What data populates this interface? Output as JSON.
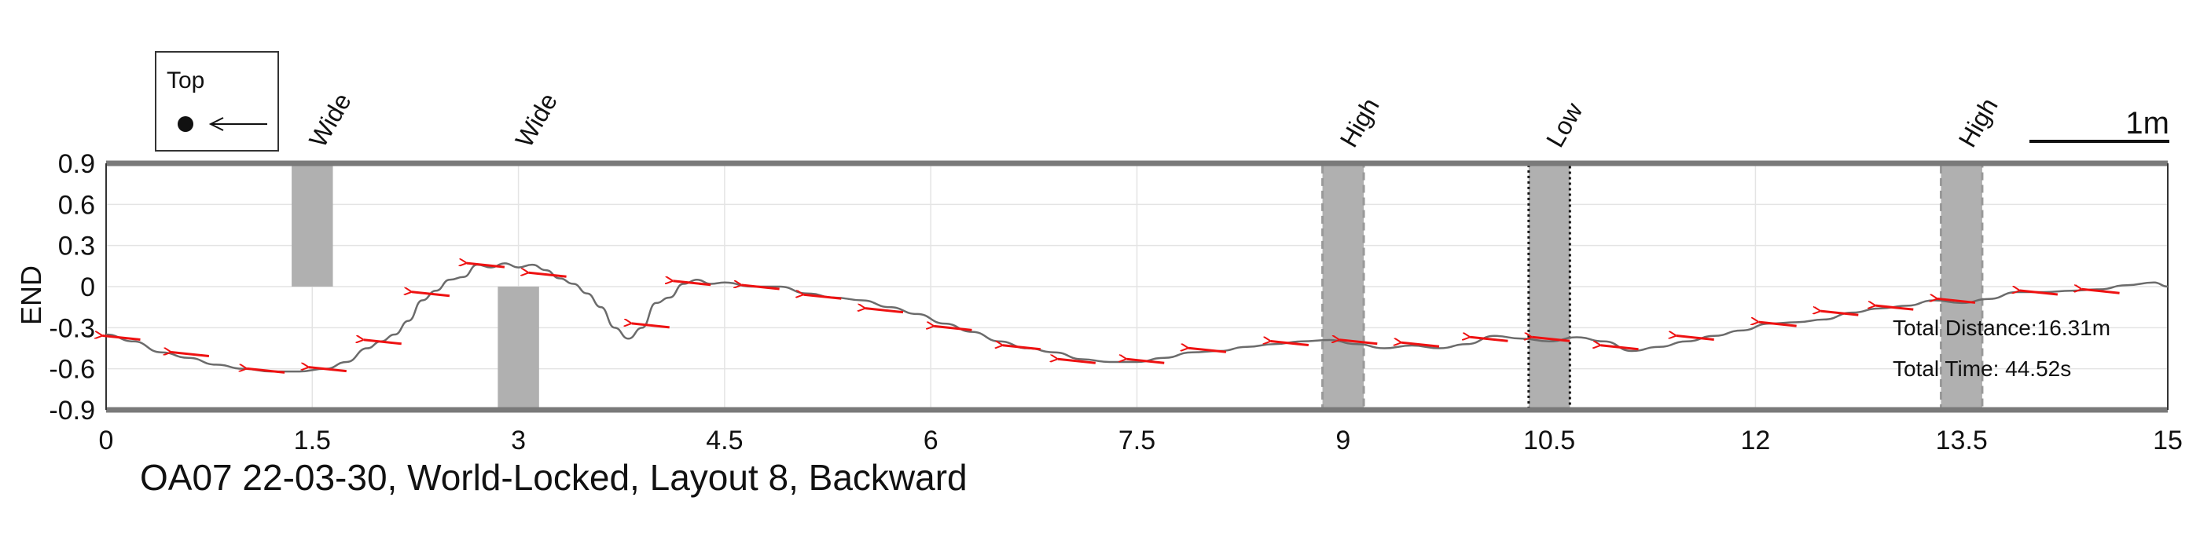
{
  "chart_data": {
    "type": "line",
    "caption": "OA07 22-03-30, World-Locked, Layout 8, Backward",
    "ylabel": "END",
    "xlim": [
      0,
      15
    ],
    "ylim": [
      -0.9,
      0.9
    ],
    "x_ticks": [
      0,
      1.5,
      3,
      4.5,
      6,
      7.5,
      9,
      10.5,
      12,
      13.5,
      15
    ],
    "x_tick_labels": [
      "0",
      "1.5",
      "3",
      "4.5",
      "6",
      "7.5",
      "9",
      "10.5",
      "12",
      "13.5",
      "15"
    ],
    "y_ticks": [
      0.9,
      0.6,
      0.3,
      0,
      -0.3,
      -0.6,
      -0.9
    ],
    "y_tick_labels": [
      "0.9",
      "0.6",
      "0.3",
      "0",
      "-0.3",
      "-0.6",
      "-0.9"
    ],
    "grid": true,
    "legend": {
      "title": "Top",
      "placement": "top-left, outside"
    },
    "scale_bar_label": "1m",
    "info": {
      "distance_label": "Total Distance:16.31m",
      "time_label": "Total Time: 44.52s"
    },
    "obstacles": [
      {
        "label": "Wide",
        "x_start": 1.35,
        "x_end": 1.65,
        "y_start": 0,
        "y_end": 0.9,
        "style": "solid"
      },
      {
        "label": "Wide",
        "x_start": 2.85,
        "x_end": 3.15,
        "y_start": -0.9,
        "y_end": 0,
        "style": "solid"
      },
      {
        "label": "High",
        "x_start": 8.85,
        "x_end": 9.15,
        "y_start": -0.9,
        "y_end": 0.9,
        "style": "dashed"
      },
      {
        "label": "Low",
        "x_start": 10.35,
        "x_end": 10.65,
        "y_start": -0.9,
        "y_end": 0.9,
        "style": "dotted"
      },
      {
        "label": "High",
        "x_start": 13.35,
        "x_end": 13.65,
        "y_start": -0.9,
        "y_end": 0.9,
        "style": "dashed"
      }
    ],
    "series": [
      {
        "x": [
          0,
          0.2,
          0.4,
          0.6,
          0.8,
          1.0,
          1.2,
          1.4,
          1.6,
          1.75,
          1.9,
          2.0,
          2.1,
          2.2,
          2.3,
          2.4,
          2.5,
          2.6,
          2.7,
          2.8,
          2.9,
          3.0,
          3.1,
          3.2,
          3.3,
          3.4,
          3.5,
          3.6,
          3.7,
          3.8,
          3.9,
          4.0,
          4.1,
          4.2,
          4.3,
          4.4,
          4.5,
          4.7,
          4.9,
          5.1,
          5.3,
          5.5,
          5.7,
          5.9,
          6.1,
          6.3,
          6.5,
          6.7,
          6.9,
          7.1,
          7.3,
          7.5,
          7.7,
          7.9,
          8.1,
          8.3,
          8.5,
          8.7,
          8.9,
          9.1,
          9.3,
          9.5,
          9.7,
          9.9,
          10.1,
          10.3,
          10.5,
          10.7,
          10.9,
          11.1,
          11.3,
          11.5,
          11.7,
          11.9,
          12.1,
          12.3,
          12.5,
          12.7,
          12.9,
          13.1,
          13.3,
          13.5,
          13.7,
          13.9,
          14.1,
          14.3,
          14.5,
          14.7,
          14.9,
          15.0
        ],
        "y": [
          -0.35,
          -0.4,
          -0.48,
          -0.52,
          -0.57,
          -0.6,
          -0.62,
          -0.62,
          -0.6,
          -0.55,
          -0.45,
          -0.4,
          -0.35,
          -0.25,
          -0.1,
          -0.03,
          0.05,
          0.07,
          0.16,
          0.14,
          0.17,
          0.14,
          0.16,
          0.12,
          0.06,
          0.02,
          -0.05,
          -0.15,
          -0.3,
          -0.38,
          -0.3,
          -0.12,
          -0.08,
          0.02,
          0.05,
          0.02,
          0.03,
          0.0,
          0.0,
          -0.05,
          -0.08,
          -0.1,
          -0.15,
          -0.2,
          -0.27,
          -0.33,
          -0.4,
          -0.45,
          -0.48,
          -0.53,
          -0.55,
          -0.55,
          -0.52,
          -0.48,
          -0.47,
          -0.44,
          -0.42,
          -0.4,
          -0.39,
          -0.42,
          -0.45,
          -0.43,
          -0.45,
          -0.42,
          -0.36,
          -0.38,
          -0.4,
          -0.37,
          -0.4,
          -0.47,
          -0.44,
          -0.4,
          -0.36,
          -0.32,
          -0.27,
          -0.26,
          -0.24,
          -0.19,
          -0.16,
          -0.14,
          -0.1,
          -0.12,
          -0.09,
          -0.04,
          -0.04,
          -0.03,
          -0.02,
          0.01,
          0.03,
          0.0
        ]
      }
    ],
    "arrows": {
      "color": "#ee1111",
      "direction": "left",
      "points": [
        {
          "x": 0.1,
          "y": -0.37
        },
        {
          "x": 0.6,
          "y": -0.49
        },
        {
          "x": 1.15,
          "y": -0.61
        },
        {
          "x": 1.6,
          "y": -0.6
        },
        {
          "x": 2.0,
          "y": -0.4
        },
        {
          "x": 2.35,
          "y": -0.05
        },
        {
          "x": 2.75,
          "y": 0.16
        },
        {
          "x": 3.2,
          "y": 0.09
        },
        {
          "x": 3.95,
          "y": -0.28
        },
        {
          "x": 4.25,
          "y": 0.03
        },
        {
          "x": 4.75,
          "y": 0.0
        },
        {
          "x": 5.2,
          "y": -0.07
        },
        {
          "x": 5.65,
          "y": -0.17
        },
        {
          "x": 6.15,
          "y": -0.3
        },
        {
          "x": 6.65,
          "y": -0.44
        },
        {
          "x": 7.05,
          "y": -0.54
        },
        {
          "x": 7.55,
          "y": -0.54
        },
        {
          "x": 8.0,
          "y": -0.46
        },
        {
          "x": 8.6,
          "y": -0.41
        },
        {
          "x": 9.1,
          "y": -0.4
        },
        {
          "x": 9.55,
          "y": -0.42
        },
        {
          "x": 10.05,
          "y": -0.38
        },
        {
          "x": 10.5,
          "y": -0.38
        },
        {
          "x": 11.0,
          "y": -0.44
        },
        {
          "x": 11.55,
          "y": -0.37
        },
        {
          "x": 12.15,
          "y": -0.27
        },
        {
          "x": 12.6,
          "y": -0.19
        },
        {
          "x": 13.0,
          "y": -0.15
        },
        {
          "x": 13.45,
          "y": -0.1
        },
        {
          "x": 14.05,
          "y": -0.04
        },
        {
          "x": 14.5,
          "y": -0.03
        }
      ]
    },
    "colors": {
      "trajectory": "#6b6b6b",
      "obstacle": "#b0b0b0",
      "axis": "#7a7a7a",
      "grid": "#e4e4e4"
    }
  }
}
